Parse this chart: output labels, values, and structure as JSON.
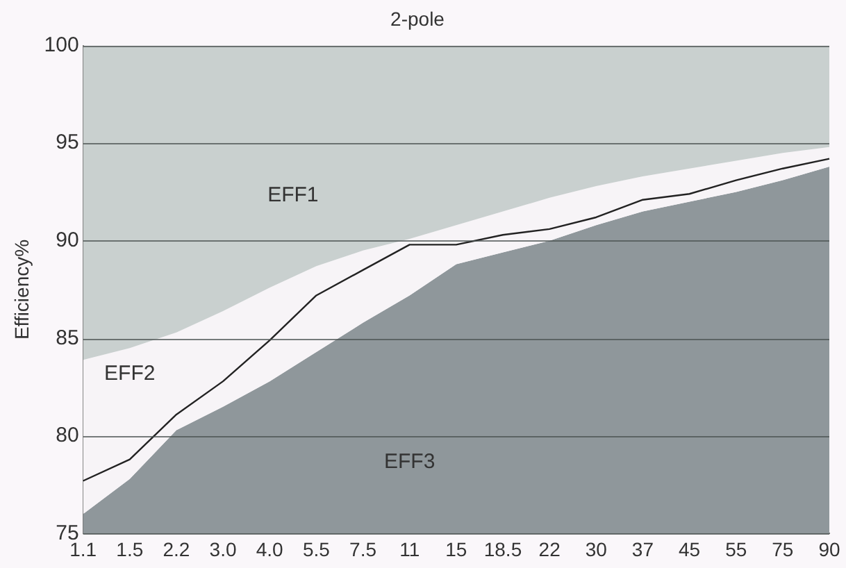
{
  "chart_data": {
    "type": "area",
    "title": "2-pole",
    "ylabel": "Efficiency%",
    "categories": [
      "1.1",
      "1.5",
      "2.2",
      "3.0",
      "4.0",
      "5.5",
      "7.5",
      "11",
      "15",
      "18.5",
      "22",
      "30",
      "37",
      "45",
      "55",
      "75",
      "90"
    ],
    "ylim": [
      75,
      100
    ],
    "yticks": [
      75,
      80,
      85,
      90,
      95,
      100
    ],
    "grid": "y",
    "legend": false,
    "series": [
      {
        "name": "EFF1",
        "color": "#c9d0cf",
        "values": [
          100,
          100,
          100,
          100,
          100,
          100,
          100,
          100,
          100,
          100,
          100,
          100,
          100,
          100,
          100,
          100,
          100
        ]
      },
      {
        "name": "EFF2",
        "color": "#f7f4f7",
        "values": [
          83.9,
          84.5,
          85.3,
          86.4,
          87.6,
          88.7,
          89.5,
          90.1,
          90.8,
          91.5,
          92.2,
          92.8,
          93.3,
          93.7,
          94.1,
          94.5,
          94.8
        ]
      },
      {
        "name": "EFF3",
        "color": "#8f979b",
        "values": [
          76.0,
          77.8,
          80.3,
          81.5,
          82.8,
          84.3,
          85.8,
          87.2,
          88.8,
          89.4,
          90.0,
          90.8,
          91.5,
          92.0,
          92.5,
          93.1,
          93.8
        ]
      },
      {
        "type": "line",
        "color": "#222222",
        "values": [
          77.7,
          78.8,
          81.1,
          82.8,
          84.9,
          87.2,
          88.5,
          89.8,
          89.8,
          90.3,
          90.6,
          91.2,
          92.1,
          92.4,
          93.1,
          93.7,
          94.2
        ]
      }
    ]
  }
}
